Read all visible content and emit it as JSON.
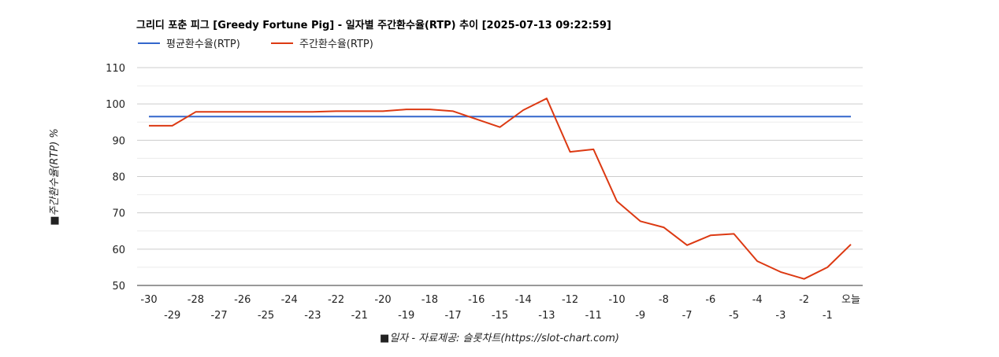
{
  "chart_data": {
    "type": "line",
    "title": "그리디 포춘 피그 [Greedy Fortune Pig] - 일자별 주간환수율(RTP) 추이 [2025-07-13 09:22:59]",
    "xlabel": "■일자 - 자료제공: 슬롯차트(https://slot-chart.com)",
    "ylabel": "■주간환수율(RTP) %",
    "ylim": [
      50,
      110
    ],
    "yticks": [
      50,
      60,
      70,
      80,
      90,
      100,
      110
    ],
    "grid": true,
    "legend_position": "top-left",
    "categories": [
      "-30",
      "-29",
      "-28",
      "-27",
      "-26",
      "-25",
      "-24",
      "-23",
      "-22",
      "-21",
      "-20",
      "-19",
      "-18",
      "-17",
      "-16",
      "-15",
      "-14",
      "-13",
      "-12",
      "-11",
      "-10",
      "-9",
      "-8",
      "-7",
      "-6",
      "-5",
      "-4",
      "-3",
      "-2",
      "-1",
      "오늘"
    ],
    "series": [
      {
        "name": "평균환수율(RTP)",
        "color": "#3366cc",
        "values": [
          96.5,
          96.5,
          96.5,
          96.5,
          96.5,
          96.5,
          96.5,
          96.5,
          96.5,
          96.5,
          96.5,
          96.5,
          96.5,
          96.5,
          96.5,
          96.5,
          96.5,
          96.5,
          96.5,
          96.5,
          96.5,
          96.5,
          96.5,
          96.5,
          96.5,
          96.5,
          96.5,
          96.5,
          96.5,
          96.5,
          96.5
        ]
      },
      {
        "name": "주간환수율(RTP)",
        "color": "#dc3912",
        "values": [
          94,
          94,
          97.8,
          97.8,
          97.8,
          97.8,
          97.8,
          97.8,
          98,
          98,
          98,
          98.5,
          98.5,
          98,
          95.8,
          93.6,
          98.3,
          101.5,
          86.8,
          87.5,
          73.2,
          67.7,
          66,
          61.1,
          63.8,
          64.2,
          56.7,
          53.7,
          51.8,
          55,
          61.3
        ]
      }
    ]
  }
}
